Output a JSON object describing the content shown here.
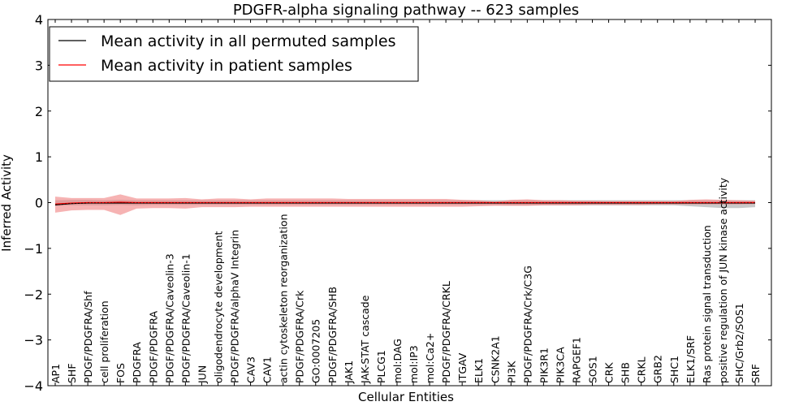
{
  "chart_data": {
    "type": "line",
    "title": "PDGFR-alpha signaling pathway -- 623 samples",
    "xlabel": "Cellular Entities",
    "ylabel": "Inferred Activity",
    "ylim": [
      -4,
      4
    ],
    "yticks": [
      "−4",
      "−3",
      "−2",
      "−1",
      "0",
      "1",
      "2",
      "3",
      "4"
    ],
    "ytick_values": [
      -4,
      -3,
      -2,
      -1,
      0,
      1,
      2,
      3,
      4
    ],
    "legend_position": "top-left",
    "categories": [
      "AP1",
      "SHF",
      "PDGF/PDGFRA/Shf",
      "cell proliferation",
      "FOS",
      "PDGFRA",
      "PDGF/PDGFRA",
      "PDGF/PDGFRA/Caveolin-3",
      "PDGF/PDGFRA/Caveolin-1",
      "JUN",
      "oligodendrocyte development",
      "PDGF/PDGFRA/alphaV Integrin",
      "CAV3",
      "CAV1",
      "actin cytoskeleton reorganization",
      "PDGF/PDGFRA/Crk",
      "GO:0007205",
      "PDGF/PDGFRA/SHB",
      "JAK1",
      "JAK-STAT cascade",
      "PLCG1",
      "mol:DAG",
      "mol:IP3",
      "mol:Ca2+",
      "PDGF/PDGFRA/CRKL",
      "ITGAV",
      "ELK1",
      "CSNK2A1",
      "PI3K",
      "PDGF/PDGFRA/Crk/C3G",
      "PIK3R1",
      "PIK3CA",
      "RAPGEF1",
      "SOS1",
      "CRK",
      "SHB",
      "CRKL",
      "GRB2",
      "SHC1",
      "ELK1/SRF",
      "Ras protein signal transduction",
      "positive regulation of JUN kinase activity",
      "SHC/Grb2/SOS1",
      "SRF"
    ],
    "series": [
      {
        "name": "Mean activity in all permuted samples",
        "color": "#000000",
        "values": [
          -0.05,
          -0.02,
          -0.01,
          -0.01,
          -0.01,
          -0.01,
          -0.01,
          -0.01,
          -0.01,
          -0.01,
          -0.01,
          -0.01,
          -0.01,
          -0.01,
          -0.01,
          -0.01,
          -0.01,
          -0.01,
          -0.01,
          -0.01,
          -0.01,
          -0.01,
          -0.01,
          -0.01,
          -0.01,
          -0.01,
          -0.01,
          -0.01,
          -0.01,
          -0.01,
          -0.01,
          -0.01,
          -0.01,
          -0.01,
          -0.01,
          -0.01,
          -0.01,
          -0.01,
          -0.01,
          -0.01,
          -0.01,
          -0.01,
          -0.01,
          -0.01
        ],
        "band_lower": [
          -0.07,
          -0.06,
          -0.06,
          -0.06,
          -0.05,
          -0.06,
          -0.05,
          -0.05,
          -0.05,
          -0.05,
          -0.05,
          -0.05,
          -0.05,
          -0.05,
          -0.05,
          -0.05,
          -0.05,
          -0.05,
          -0.05,
          -0.05,
          -0.05,
          -0.05,
          -0.05,
          -0.05,
          -0.05,
          -0.05,
          -0.05,
          -0.05,
          -0.06,
          -0.06,
          -0.06,
          -0.06,
          -0.06,
          -0.06,
          -0.06,
          -0.06,
          -0.06,
          -0.06,
          -0.06,
          -0.08,
          -0.1,
          -0.12,
          -0.12,
          -0.1
        ],
        "band_upper": [
          0.05,
          0.06,
          0.06,
          0.05,
          0.06,
          0.05,
          0.05,
          0.05,
          0.05,
          0.05,
          0.05,
          0.05,
          0.05,
          0.05,
          0.05,
          0.05,
          0.05,
          0.05,
          0.05,
          0.05,
          0.05,
          0.05,
          0.05,
          0.05,
          0.05,
          0.05,
          0.05,
          0.05,
          0.05,
          0.05,
          0.05,
          0.05,
          0.05,
          0.05,
          0.05,
          0.05,
          0.05,
          0.05,
          0.05,
          0.05,
          0.05,
          0.05,
          0.05,
          0.05
        ]
      },
      {
        "name": "Mean activity in patient samples",
        "color": "#ff0000",
        "values": [
          -0.03,
          -0.01,
          0.0,
          0.0,
          0.01,
          0.0,
          0.0,
          0.0,
          0.0,
          0.0,
          0.0,
          0.0,
          0.0,
          0.0,
          0.0,
          0.0,
          0.0,
          0.0,
          0.0,
          0.0,
          0.0,
          0.0,
          0.0,
          0.0,
          0.0,
          0.0,
          0.0,
          0.0,
          0.0,
          0.0,
          0.0,
          0.0,
          0.0,
          0.0,
          0.0,
          0.0,
          0.0,
          0.0,
          0.0,
          0.0,
          0.0,
          0.0,
          0.0,
          0.0
        ],
        "band_lower": [
          -0.22,
          -0.17,
          -0.16,
          -0.16,
          -0.27,
          -0.13,
          -0.12,
          -0.12,
          -0.13,
          -0.1,
          -0.1,
          -0.1,
          -0.09,
          -0.09,
          -0.09,
          -0.09,
          -0.09,
          -0.09,
          -0.09,
          -0.09,
          -0.09,
          -0.09,
          -0.09,
          -0.09,
          -0.09,
          -0.09,
          -0.08,
          -0.07,
          -0.07,
          -0.07,
          -0.06,
          -0.06,
          -0.06,
          -0.05,
          -0.05,
          -0.05,
          -0.05,
          -0.04,
          -0.04,
          -0.04,
          -0.04,
          -0.04,
          -0.04,
          -0.03
        ],
        "band_upper": [
          0.13,
          0.1,
          0.1,
          0.1,
          0.18,
          0.09,
          0.09,
          0.09,
          0.1,
          0.07,
          0.09,
          0.09,
          0.07,
          0.09,
          0.09,
          0.09,
          0.09,
          0.09,
          0.08,
          0.08,
          0.08,
          0.08,
          0.08,
          0.08,
          0.08,
          0.06,
          0.05,
          0.02,
          0.06,
          0.07,
          0.05,
          0.05,
          0.04,
          0.04,
          0.03,
          0.03,
          0.03,
          0.03,
          0.03,
          0.06,
          0.07,
          0.06,
          0.05,
          0.04
        ]
      }
    ],
    "colors": {
      "band_permuted": "#c8c8c8",
      "band_patient": "#f08080",
      "axis": "#000000",
      "background": "#ffffff"
    }
  }
}
